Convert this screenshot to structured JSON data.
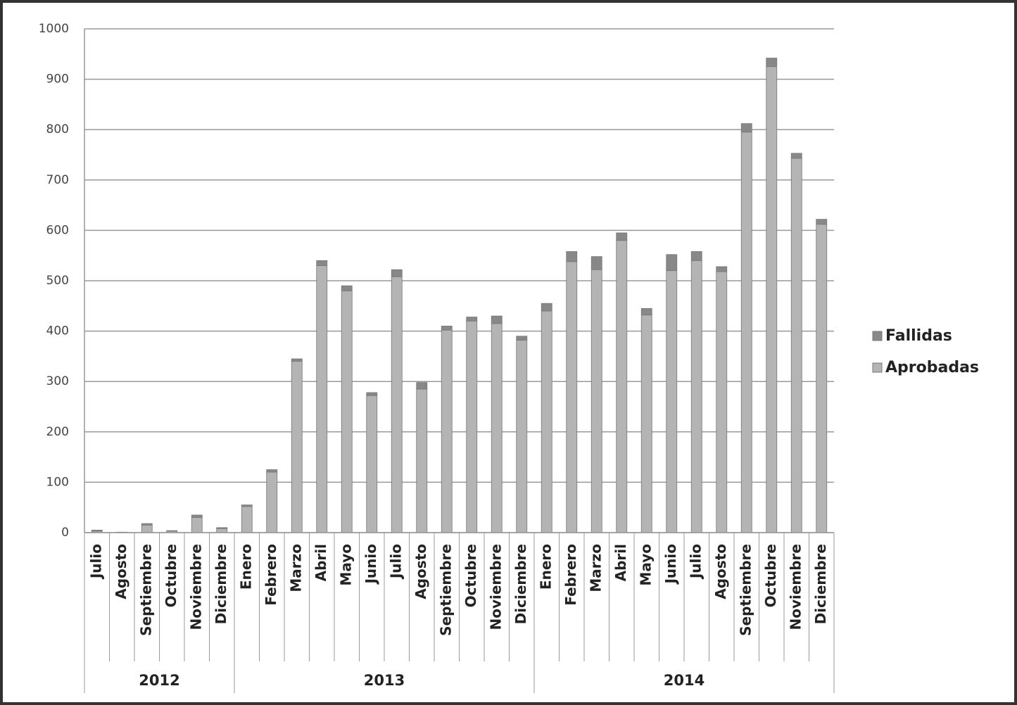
{
  "chart_data": {
    "type": "stacked-bar",
    "groups": [
      {
        "label": "2012",
        "categories": [
          "Julio",
          "Agosto",
          "Septiembre",
          "Octubre",
          "Noviembre",
          "Diciembre"
        ]
      },
      {
        "label": "2013",
        "categories": [
          "Enero",
          "Febrero",
          "Marzo",
          "Abril",
          "Mayo",
          "Junio",
          "Julio",
          "Agosto",
          "Septiembre",
          "Octubre",
          "Noviembre",
          "Diciembre"
        ]
      },
      {
        "label": "2014",
        "categories": [
          "Enero",
          "Febrero",
          "Marzo",
          "Abril",
          "Mayo",
          "Junio",
          "Julio",
          "Agosto",
          "Septiembre",
          "Octubre",
          "Noviembre",
          "Diciembre"
        ]
      }
    ],
    "series": [
      {
        "name": "Aprobadas",
        "color": "#b4b4b4",
        "values": [
          3,
          1,
          15,
          3,
          30,
          8,
          52,
          120,
          340,
          530,
          480,
          272,
          508,
          285,
          402,
          420,
          415,
          382,
          440,
          538,
          522,
          580,
          432,
          520,
          540,
          518,
          795,
          925,
          743,
          612
        ]
      },
      {
        "name": "Fallidas",
        "color": "#888888",
        "values": [
          2,
          0,
          3,
          1,
          5,
          2,
          3,
          5,
          5,
          10,
          10,
          6,
          14,
          13,
          8,
          8,
          15,
          8,
          15,
          20,
          26,
          15,
          13,
          32,
          18,
          10,
          17,
          17,
          10,
          10
        ]
      }
    ],
    "ylim": [
      0,
      1000
    ],
    "yticks": [
      0,
      100,
      200,
      300,
      400,
      500,
      600,
      700,
      800,
      900,
      1000
    ],
    "grid": true
  }
}
